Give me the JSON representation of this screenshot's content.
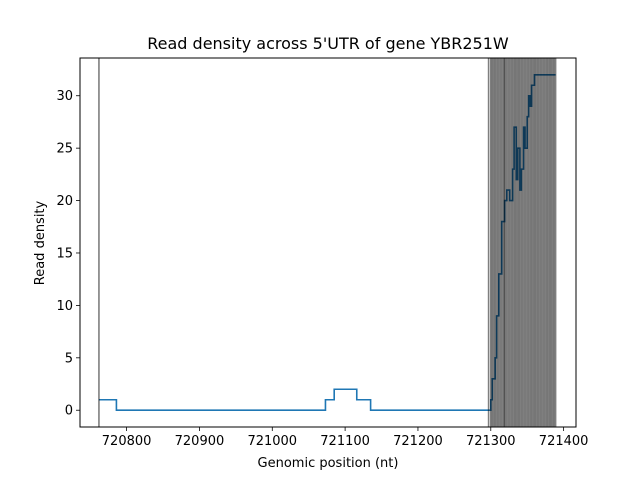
{
  "chart_data": {
    "type": "line",
    "title": "Read density across 5'UTR of gene YBR251W",
    "xlabel": "Genomic position (nt)",
    "ylabel": "Read density",
    "xlim": [
      720736,
      721417
    ],
    "ylim": [
      -1.6,
      33.6
    ],
    "xticks": [
      720800,
      720900,
      721000,
      721100,
      721200,
      721300,
      721400
    ],
    "yticks": [
      0,
      5,
      10,
      15,
      20,
      25,
      30
    ],
    "grid": false,
    "series": [
      {
        "color": "#1f77b4",
        "style": "step",
        "x": [
          720762,
          720785,
          720786,
          721071,
          721073,
          721084,
          721085,
          721114,
          721116,
          721133,
          721135,
          721298,
          721300,
          721302,
          721304,
          721306,
          721308,
          721309,
          721311,
          721313,
          721315,
          721317,
          721319,
          721322,
          721324,
          721326,
          721328,
          721330,
          721332,
          721335,
          721337,
          721340,
          721342,
          721345,
          721347,
          721350,
          721352,
          721354,
          721356,
          721358,
          721360,
          721363,
          721365,
          721368,
          721370,
          721373,
          721375,
          721377,
          721380,
          721382,
          721384,
          721386,
          721388,
          721389
        ],
        "y": [
          1,
          1,
          0,
          0,
          1,
          1,
          2,
          2,
          1,
          1,
          0,
          0,
          1,
          3,
          3,
          5,
          9,
          9,
          13,
          13,
          18,
          18,
          20,
          21,
          21,
          20,
          20,
          23,
          27,
          22,
          25,
          21,
          23,
          27,
          25,
          28,
          30,
          29,
          31,
          31,
          32,
          32,
          32,
          32,
          32,
          32,
          32,
          32,
          32,
          32,
          32,
          32,
          32,
          32
        ]
      }
    ],
    "vlines": [
      720762,
      721297,
      721300,
      721302,
      721304,
      721306,
      721308,
      721310,
      721312,
      721314,
      721316,
      721318,
      721319,
      721321,
      721323,
      721325,
      721327,
      721329,
      721331,
      721333,
      721335,
      721337,
      721339,
      721341,
      721343,
      721345,
      721347,
      721349,
      721351,
      721353,
      721355,
      721357,
      721359,
      721361,
      721363,
      721365,
      721367,
      721369,
      721371,
      721373,
      721375,
      721377,
      721379,
      721381,
      721383,
      721385,
      721387,
      721389
    ],
    "vline_color": "#000000"
  }
}
